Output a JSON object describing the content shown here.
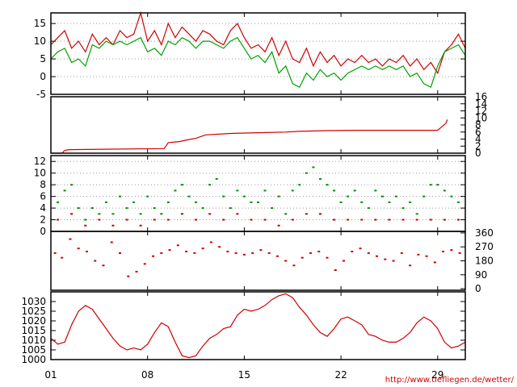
{
  "chart_data": [
    {
      "type": "line",
      "panel": "temperature",
      "ylim": [
        -5,
        18
      ],
      "yticks": [
        "15",
        "10",
        "5",
        "0",
        "-5"
      ],
      "ytick_values": [
        15,
        10,
        5,
        0,
        -5
      ],
      "grid": true,
      "series": [
        {
          "color": "#d00000",
          "x": [
            1,
            1.5,
            2,
            2.5,
            3,
            3.5,
            4,
            4.5,
            5,
            5.5,
            6,
            6.5,
            7,
            7.5,
            8,
            8.5,
            9,
            9.5,
            10,
            10.5,
            11,
            11.5,
            12,
            12.5,
            13,
            13.5,
            14,
            14.5,
            15,
            15.5,
            16,
            16.5,
            17,
            17.5,
            18,
            18.5,
            19,
            19.5,
            20,
            20.5,
            21,
            21.5,
            22,
            22.5,
            23,
            23.5,
            24,
            24.5,
            25,
            25.5,
            26,
            26.5,
            27,
            27.5,
            28,
            28.5,
            29,
            29.5,
            30,
            30.5,
            31
          ],
          "y": [
            9,
            11,
            13,
            8,
            10,
            7,
            12,
            9,
            11,
            9,
            13,
            11,
            12,
            18,
            10,
            13,
            9,
            15,
            11,
            14,
            12,
            10,
            13,
            12,
            10,
            9,
            13,
            15,
            11,
            8,
            9,
            7,
            11,
            6,
            10,
            5,
            4,
            8,
            3,
            7,
            4,
            6,
            3,
            5,
            4,
            6,
            4,
            5,
            3,
            5,
            4,
            6,
            3,
            5,
            2,
            4,
            1,
            7,
            9,
            12,
            8
          ]
        },
        {
          "color": "#00a000",
          "x": [
            1,
            1.5,
            2,
            2.5,
            3,
            3.5,
            4,
            4.5,
            5,
            5.5,
            6,
            6.5,
            7,
            7.5,
            8,
            8.5,
            9,
            9.5,
            10,
            10.5,
            11,
            11.5,
            12,
            12.5,
            13,
            13.5,
            14,
            14.5,
            15,
            15.5,
            16,
            16.5,
            17,
            17.5,
            18,
            18.5,
            19,
            19.5,
            20,
            20.5,
            21,
            21.5,
            22,
            22.5,
            23,
            23.5,
            24,
            24.5,
            25,
            25.5,
            26,
            26.5,
            27,
            27.5,
            28,
            28.5,
            29,
            29.5,
            30,
            30.5,
            31
          ],
          "y": [
            5,
            7,
            8,
            4,
            5,
            3,
            9,
            8,
            10,
            9,
            10,
            9,
            10,
            11,
            7,
            8,
            6,
            10,
            9,
            11,
            10,
            8,
            10,
            10,
            9,
            8,
            10,
            11,
            8,
            5,
            6,
            4,
            7,
            1,
            3,
            -2,
            -3,
            1,
            -1,
            2,
            0,
            1,
            -1,
            1,
            2,
            3,
            2,
            3,
            2,
            3,
            2,
            3,
            0,
            1,
            -2,
            -3,
            3,
            7,
            8,
            9,
            6
          ]
        }
      ]
    },
    {
      "type": "line",
      "panel": "precipitation",
      "ylim": [
        0,
        16
      ],
      "yticks": [
        "16",
        "14",
        "12",
        "10",
        "8",
        "6",
        "4",
        "2",
        "0"
      ],
      "ytick_values": [
        16,
        14,
        12,
        10,
        8,
        6,
        4,
        2,
        0
      ],
      "grid": false,
      "series": [
        {
          "color": "#d00000",
          "x": [
            1,
            1.8,
            2,
            2.3,
            9.2,
            9.5,
            10.3,
            10.9,
            11.5,
            12.2,
            14,
            16,
            18,
            19,
            21,
            23,
            25,
            27,
            29,
            29.3,
            29.6,
            29.7
          ],
          "y": [
            0,
            0,
            0.8,
            1.0,
            1.3,
            3.0,
            3.3,
            3.8,
            4.2,
            5.2,
            5.6,
            5.8,
            6.0,
            6.2,
            6.4,
            6.5,
            6.5,
            6.5,
            6.5,
            7.5,
            8.5,
            9.5
          ]
        }
      ]
    },
    {
      "type": "scatter",
      "panel": "wind-speed",
      "ylim": [
        0,
        13
      ],
      "yticks": [
        "12",
        "10",
        "8",
        "6",
        "4",
        "2",
        "0"
      ],
      "ytick_values": [
        12,
        10,
        8,
        6,
        4,
        2,
        0
      ],
      "grid": true,
      "series": [
        {
          "color": "#009000",
          "x": [
            1.5,
            2,
            2.5,
            3,
            3.5,
            4,
            4.5,
            5,
            5.5,
            6,
            6.5,
            7,
            7.5,
            8,
            8.5,
            9,
            9.5,
            10,
            10.5,
            11,
            11.5,
            12,
            12.5,
            13,
            13.5,
            14,
            14.5,
            15,
            15.5,
            16,
            16.5,
            17,
            17.5,
            18,
            18.5,
            19,
            19.5,
            20,
            20.5,
            21,
            21.5,
            22,
            22.5,
            23,
            23.5,
            24,
            24.5,
            25,
            25.5,
            26,
            26.5,
            27,
            27.5,
            28,
            28.5,
            29,
            29.5,
            30,
            30.5
          ],
          "y": [
            5,
            7,
            8,
            4,
            2,
            4,
            3,
            5,
            3,
            6,
            4,
            5,
            3,
            6,
            4,
            3,
            5,
            7,
            8,
            6,
            5,
            4,
            8,
            9,
            6,
            4,
            7,
            6,
            5,
            5,
            7,
            4,
            6,
            3,
            7,
            8,
            10,
            11,
            9,
            8,
            7,
            5,
            6,
            7,
            5,
            4,
            7,
            6,
            5,
            6,
            4,
            5,
            3,
            6,
            8,
            8,
            7,
            6,
            5
          ]
        },
        {
          "color": "#c00000",
          "x": [
            1.5,
            2.5,
            3.5,
            4.5,
            5.5,
            6.5,
            7.5,
            8.5,
            9.5,
            10.5,
            11.5,
            12.5,
            13.5,
            14.5,
            15.5,
            16.5,
            17.5,
            18.5,
            19.5,
            20.5,
            21.5,
            22.5,
            23.5,
            24.5,
            25.5,
            26.5,
            27.5,
            28.5,
            29.5,
            30.5
          ],
          "y": [
            2,
            3,
            1,
            2,
            1,
            2,
            1,
            2,
            2,
            3,
            2,
            3,
            2,
            3,
            2,
            2,
            1,
            2,
            3,
            3,
            2,
            2,
            2,
            2,
            2,
            2,
            2,
            2,
            2,
            2
          ]
        }
      ]
    },
    {
      "type": "scatter",
      "panel": "wind-direction",
      "ylim": [
        -10,
        370
      ],
      "yticks": [
        "360",
        "270",
        "180",
        "90",
        "0"
      ],
      "ytick_values": [
        360,
        270,
        180,
        90,
        0
      ],
      "grid": false,
      "series": [
        {
          "color": "#d00000",
          "x": [
            1.3,
            1.8,
            2.4,
            3,
            3.6,
            4.2,
            4.8,
            5.4,
            6,
            6.6,
            7.2,
            7.8,
            8.4,
            9,
            9.6,
            10.2,
            10.8,
            11.4,
            12,
            12.6,
            13.2,
            13.8,
            14.4,
            15,
            15.6,
            16.2,
            16.8,
            17.4,
            18,
            18.6,
            19.2,
            19.8,
            20.4,
            21,
            21.6,
            22.2,
            22.8,
            23.4,
            24,
            24.6,
            25.2,
            25.8,
            26.4,
            27,
            27.6,
            28.2,
            28.8,
            29.4,
            30,
            30.6
          ],
          "y": [
            230,
            200,
            320,
            260,
            240,
            180,
            150,
            300,
            230,
            80,
            110,
            160,
            210,
            230,
            250,
            280,
            240,
            230,
            260,
            300,
            270,
            240,
            230,
            220,
            230,
            250,
            230,
            210,
            180,
            150,
            200,
            230,
            240,
            200,
            120,
            180,
            240,
            260,
            230,
            210,
            190,
            180,
            230,
            150,
            220,
            210,
            170,
            240,
            250,
            230
          ]
        }
      ]
    },
    {
      "type": "line",
      "panel": "pressure",
      "ylim": [
        1000,
        1035
      ],
      "yticks": [
        "1030",
        "1025",
        "1020",
        "1015",
        "1010",
        "1005",
        "1000"
      ],
      "ytick_values": [
        1030,
        1025,
        1020,
        1015,
        1010,
        1005,
        1000
      ],
      "xlim": [
        1,
        31
      ],
      "xticks": [
        "01",
        "08",
        "15",
        "22",
        "29"
      ],
      "xtick_values": [
        1,
        8,
        15,
        22,
        29
      ],
      "grid": false,
      "series": [
        {
          "color": "#d00000",
          "x": [
            1,
            1.5,
            2,
            2.5,
            3,
            3.5,
            4,
            4.5,
            5,
            5.5,
            6,
            6.5,
            7,
            7.5,
            8,
            8.5,
            9,
            9.5,
            10,
            10.5,
            11,
            11.5,
            12,
            12.5,
            13,
            13.5,
            14,
            14.5,
            15,
            15.5,
            16,
            16.5,
            17,
            17.5,
            18,
            18.5,
            19,
            19.5,
            20,
            20.5,
            21,
            21.5,
            22,
            22.5,
            23,
            23.5,
            24,
            24.5,
            25,
            25.5,
            26,
            26.5,
            27,
            27.5,
            28,
            28.5,
            29,
            29.5,
            30,
            30.5,
            31
          ],
          "y": [
            1011,
            1008,
            1009,
            1018,
            1025,
            1028,
            1026,
            1021,
            1016,
            1011,
            1007,
            1005,
            1006,
            1005,
            1008,
            1014,
            1019,
            1017,
            1009,
            1002,
            1001,
            1002,
            1007,
            1011,
            1013,
            1016,
            1017,
            1023,
            1026,
            1025,
            1026,
            1028,
            1031,
            1033,
            1034,
            1032,
            1027,
            1023,
            1018,
            1014,
            1012,
            1016,
            1021,
            1022,
            1020,
            1018,
            1013,
            1012,
            1010,
            1009,
            1009,
            1011,
            1014,
            1019,
            1022,
            1020,
            1016,
            1009,
            1006,
            1007,
            1009
          ]
        }
      ]
    }
  ],
  "credit": "http://www.tiefliegen.de/wetter/"
}
